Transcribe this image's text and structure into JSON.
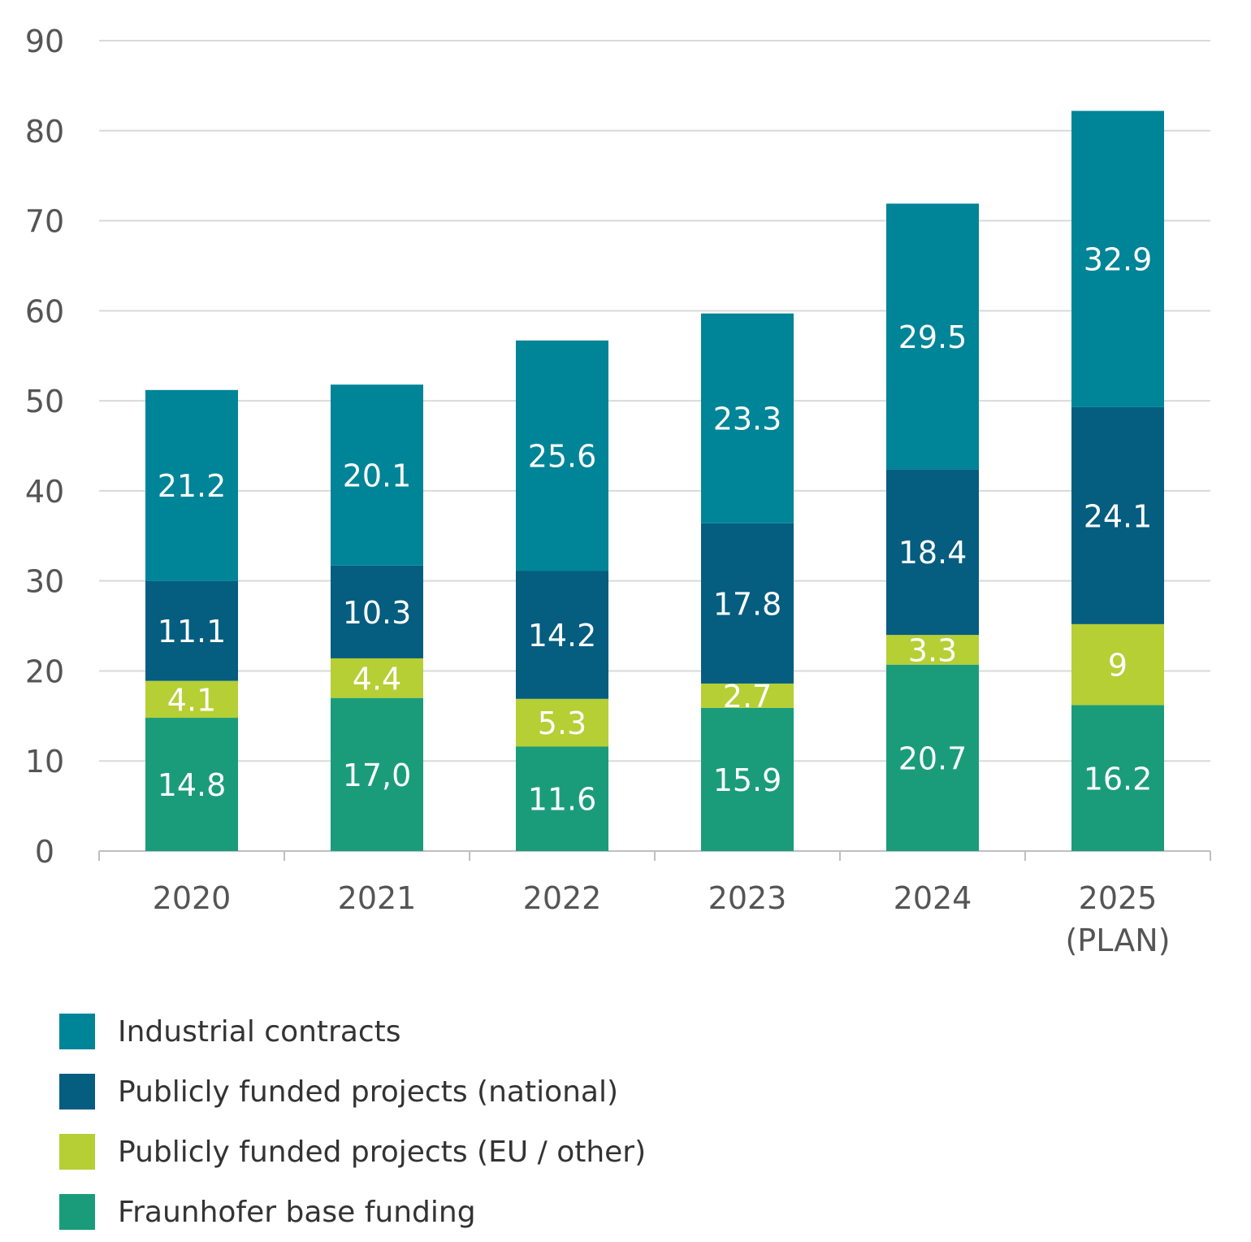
{
  "chart_data": {
    "type": "bar",
    "stacked": true,
    "categories": [
      "2020",
      "2021",
      "2022",
      "2023",
      "2024",
      "2025\n(PLAN)"
    ],
    "series": [
      {
        "name": "Fraunhofer base funding",
        "color": "#1a9c7b",
        "values": [
          14.8,
          17.0,
          11.6,
          15.9,
          20.7,
          16.2
        ],
        "labels": [
          "14.8",
          "17,0",
          "11.6",
          "15.9",
          "20.7",
          "16.2"
        ]
      },
      {
        "name": "Publicly funded projects (EU / other)",
        "color": "#b5cf34",
        "values": [
          4.1,
          4.4,
          5.3,
          2.7,
          3.3,
          9
        ],
        "labels": [
          "4.1",
          "4.4",
          "5.3",
          "2.7",
          "3.3",
          "9"
        ]
      },
      {
        "name": "Publicly funded projects (national)",
        "color": "#055d80",
        "values": [
          11.1,
          10.3,
          14.2,
          17.8,
          18.4,
          24.1
        ],
        "labels": [
          "11.1",
          "10.3",
          "14.2",
          "17.8",
          "18.4",
          "24.1"
        ]
      },
      {
        "name": "Industrial contracts",
        "color": "#008497",
        "values": [
          21.2,
          20.1,
          25.6,
          23.3,
          29.5,
          32.9
        ],
        "labels": [
          "21.2",
          "20.1",
          "25.6",
          "23.3",
          "29.5",
          "32.9"
        ]
      }
    ],
    "ylim": [
      0,
      90
    ],
    "yticks": [
      0,
      10,
      20,
      30,
      40,
      50,
      60,
      70,
      80,
      90
    ],
    "grid": true,
    "legend_position": "bottom-left"
  },
  "legend": {
    "items": [
      {
        "label": "Industrial contracts",
        "color": "#008497"
      },
      {
        "label": "Publicly funded projects (national)",
        "color": "#055d80"
      },
      {
        "label": "Publicly funded projects (EU / other)",
        "color": "#b5cf34"
      },
      {
        "label": "Fraunhofer base funding",
        "color": "#1a9c7b"
      }
    ]
  }
}
